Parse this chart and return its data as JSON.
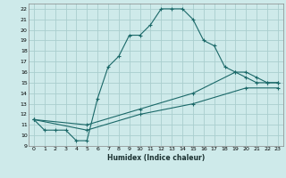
{
  "xlabel": "Humidex (Indice chaleur)",
  "bg_color": "#ceeaea",
  "grid_color": "#aacece",
  "line_color": "#1a6868",
  "xlim": [
    -0.5,
    23.5
  ],
  "ylim": [
    9,
    22.5
  ],
  "xticks": [
    0,
    1,
    2,
    3,
    4,
    5,
    6,
    7,
    8,
    9,
    10,
    11,
    12,
    13,
    14,
    15,
    16,
    17,
    18,
    19,
    20,
    21,
    22,
    23
  ],
  "yticks": [
    9,
    10,
    11,
    12,
    13,
    14,
    15,
    16,
    17,
    18,
    19,
    20,
    21,
    22
  ],
  "series1_x": [
    0,
    1,
    2,
    3,
    4,
    5,
    6,
    7,
    8,
    9,
    10,
    11,
    12,
    13,
    14,
    15,
    16,
    17,
    18,
    19,
    20,
    21,
    22,
    23
  ],
  "series1_y": [
    11.5,
    10.5,
    10.5,
    10.5,
    9.5,
    9.5,
    13.5,
    16.5,
    17.5,
    19.5,
    19.5,
    20.5,
    22.0,
    22.0,
    22.0,
    21.0,
    19.0,
    18.5,
    16.5,
    16.0,
    15.5,
    15.0,
    15.0,
    15.0
  ],
  "series2_x": [
    0,
    5,
    10,
    15,
    19,
    20,
    21,
    22,
    23
  ],
  "series2_y": [
    11.5,
    11.0,
    12.5,
    14.0,
    16.0,
    16.0,
    15.5,
    15.0,
    15.0
  ],
  "series3_x": [
    0,
    5,
    10,
    15,
    20,
    23
  ],
  "series3_y": [
    11.5,
    10.5,
    12.0,
    13.0,
    14.5,
    14.5
  ]
}
